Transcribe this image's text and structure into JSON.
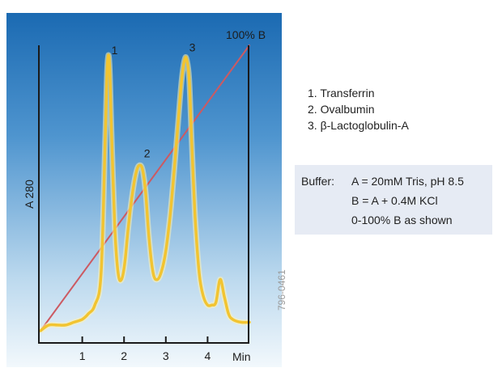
{
  "chart_data": {
    "type": "line",
    "title": "",
    "xlabel": "Min",
    "ylabel": "A 280",
    "gradient_label": "100% B",
    "x_ticks": [
      "1",
      "2",
      "3",
      "4"
    ],
    "x_tick_values": [
      1,
      2,
      3,
      4
    ],
    "xlim": [
      0,
      5
    ],
    "ylim": [
      0,
      1
    ],
    "grid": false,
    "series": [
      {
        "name": "",
        "color": "#f2c431",
        "x": [
          0.0,
          0.2,
          0.4,
          0.6,
          0.8,
          1.0,
          1.15,
          1.3,
          1.45,
          1.55,
          1.6,
          1.65,
          1.7,
          1.78,
          1.86,
          1.94,
          2.02,
          2.1,
          2.2,
          2.3,
          2.38,
          2.45,
          2.52,
          2.6,
          2.7,
          2.8,
          2.9,
          3.0,
          3.1,
          3.2,
          3.3,
          3.38,
          3.45,
          3.5,
          3.56,
          3.62,
          3.7,
          3.8,
          3.9,
          4.0,
          4.1,
          4.2,
          4.3,
          4.4,
          4.5,
          4.6,
          4.8,
          5.0
        ],
        "y": [
          0.0,
          0.02,
          0.02,
          0.02,
          0.03,
          0.04,
          0.06,
          0.09,
          0.2,
          0.68,
          0.93,
          0.94,
          0.7,
          0.36,
          0.2,
          0.18,
          0.24,
          0.36,
          0.48,
          0.56,
          0.58,
          0.56,
          0.48,
          0.32,
          0.2,
          0.18,
          0.21,
          0.28,
          0.4,
          0.56,
          0.74,
          0.88,
          0.95,
          0.95,
          0.88,
          0.66,
          0.4,
          0.2,
          0.12,
          0.09,
          0.09,
          0.1,
          0.18,
          0.12,
          0.06,
          0.04,
          0.03,
          0.03
        ]
      },
      {
        "name": "",
        "color": "#cc5a62",
        "x": [
          0.0,
          5.0
        ],
        "y": [
          0.0,
          1.0
        ]
      }
    ],
    "peaks": [
      {
        "label": "1",
        "x": 1.62,
        "y": 0.94
      },
      {
        "label": "2",
        "x": 2.4,
        "y": 0.58
      },
      {
        "label": "3",
        "x": 3.48,
        "y": 0.95
      }
    ]
  },
  "legend": {
    "items": [
      "1. Transferrin",
      "2. Ovalbumin",
      "3. β-Lactoglobulin-A"
    ]
  },
  "buffer": {
    "prefix": "Buffer:",
    "line1": "A = 20mM Tris, pH 8.5",
    "line2": "B = A + 0.4M KCl",
    "line3": "0-100% B as shown"
  },
  "code": "796-0461",
  "colors": {
    "panel_top": "#1b6ab2",
    "panel_bottom": "#f2f8fc",
    "trace": "#f2c431",
    "gradient_line": "#cc5a62"
  }
}
